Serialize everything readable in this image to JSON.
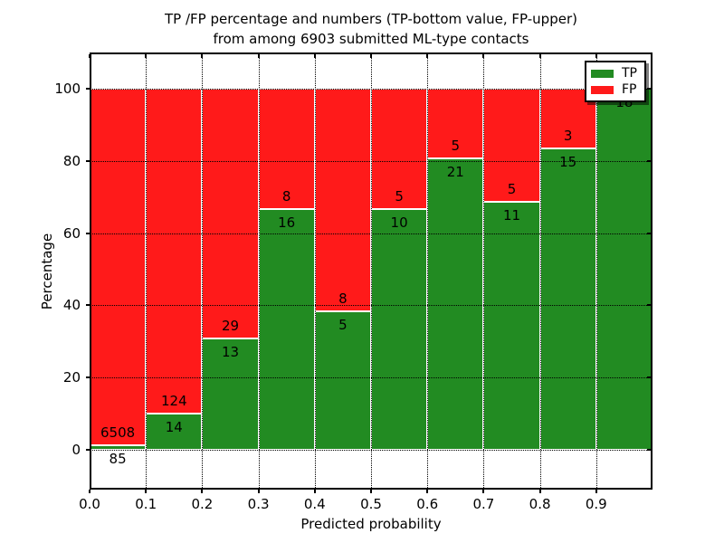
{
  "title": {
    "line1": "TP /FP percentage and numbers (TP-bottom value, FP-upper)",
    "line2": "from among 6903 submitted ML-type contacts"
  },
  "axes": {
    "xlabel": "Predicted probability",
    "ylabel": "Percentage",
    "x_tick_labels": [
      "0.0",
      "0.1",
      "0.2",
      "0.3",
      "0.4",
      "0.5",
      "0.6",
      "0.7",
      "0.8",
      "0.9"
    ],
    "y_tick_labels": [
      "0",
      "20",
      "40",
      "60",
      "80",
      "100"
    ]
  },
  "legend": {
    "position": "upper right",
    "items": [
      {
        "label": "TP",
        "color": "#228b22"
      },
      {
        "label": "FP",
        "color": "#ff1a1a"
      }
    ]
  },
  "chart_data": {
    "type": "bar",
    "stacked": true,
    "title": "TP /FP percentage and numbers (TP-bottom value, FP-upper) from among 6903 submitted ML-type contacts",
    "xlabel": "Predicted probability",
    "ylabel": "Percentage",
    "total_contacts": 6903,
    "categories": [
      "0.0",
      "0.1",
      "0.2",
      "0.3",
      "0.4",
      "0.5",
      "0.6",
      "0.7",
      "0.8",
      "0.9"
    ],
    "bin_width": 0.1,
    "xlim": [
      0,
      1
    ],
    "ylim": [
      -11,
      110
    ],
    "x_ticks": [
      0,
      0.1,
      0.2,
      0.3,
      0.4,
      0.5,
      0.6,
      0.7,
      0.8,
      0.9
    ],
    "y_ticks": [
      0,
      20,
      40,
      60,
      80,
      100
    ],
    "grid": true,
    "grid_style": "dotted",
    "series": [
      {
        "name": "TP",
        "color": "#228b22",
        "counts": [
          85,
          14,
          13,
          16,
          5,
          10,
          21,
          11,
          15,
          18
        ],
        "percent": [
          1.29,
          10.14,
          30.95,
          66.67,
          38.46,
          66.67,
          80.77,
          68.75,
          83.33,
          100.0
        ]
      },
      {
        "name": "FP",
        "color": "#ff1a1a",
        "counts": [
          6508,
          124,
          29,
          8,
          8,
          5,
          5,
          5,
          3,
          0
        ],
        "percent": [
          98.71,
          89.86,
          69.05,
          33.33,
          61.54,
          33.33,
          19.23,
          31.25,
          16.67,
          0.0
        ]
      }
    ],
    "bar_value_labels": {
      "tp": [
        "85",
        "14",
        "13",
        "16",
        "5",
        "10",
        "21",
        "11",
        "15",
        "18"
      ],
      "fp": [
        "6508",
        "124",
        "29",
        "8",
        "8",
        "5",
        "5",
        "5",
        "3",
        null
      ]
    }
  }
}
